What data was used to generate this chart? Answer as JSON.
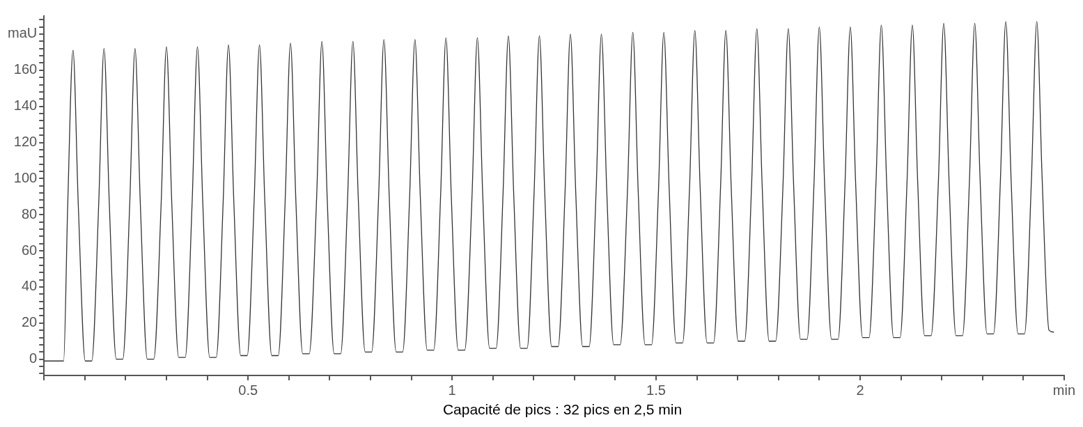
{
  "chart_data": {
    "type": "line",
    "annotations": [
      "Capacité de pics : 32 pics en 2,5 min"
    ],
    "xlim": [
      0,
      2.5
    ],
    "ylim": [
      -9,
      190
    ],
    "xticks": [
      {
        "value": 0,
        "label": null
      },
      {
        "value": 0.1,
        "label": null
      },
      {
        "value": 0.2,
        "label": null
      },
      {
        "value": 0.3,
        "label": null
      },
      {
        "value": 0.4,
        "label": null
      },
      0.5,
      {
        "value": 0.6,
        "label": null
      },
      {
        "value": 0.7,
        "label": null
      },
      {
        "value": 0.8,
        "label": null
      },
      {
        "value": 0.9,
        "label": null
      },
      1,
      {
        "value": 1.1,
        "label": null
      },
      {
        "value": 1.2,
        "label": null
      },
      {
        "value": 1.3,
        "label": null
      },
      {
        "value": 1.4,
        "label": null
      },
      1.5,
      {
        "value": 1.6,
        "label": null
      },
      {
        "value": 1.7,
        "label": null
      },
      {
        "value": 1.8,
        "label": null
      },
      {
        "value": 1.9,
        "label": null
      },
      2,
      {
        "value": 2.1,
        "label": null
      },
      {
        "value": 2.2,
        "label": null
      },
      {
        "value": 2.3,
        "label": null
      },
      {
        "value": 2.4,
        "label": null
      },
      {
        "value": 2.5,
        "label": "min"
      }
    ],
    "yticks": [
      {
        "value": -8,
        "label": null
      },
      {
        "value": -4,
        "label": null
      },
      0,
      {
        "value": 4,
        "label": null
      },
      {
        "value": 8,
        "label": null
      },
      {
        "value": 12,
        "label": null
      },
      {
        "value": 16,
        "label": null
      },
      20,
      {
        "value": 24,
        "label": null
      },
      {
        "value": 28,
        "label": null
      },
      {
        "value": 32,
        "label": null
      },
      {
        "value": 36,
        "label": null
      },
      40,
      {
        "value": 44,
        "label": null
      },
      {
        "value": 48,
        "label": null
      },
      {
        "value": 52,
        "label": null
      },
      {
        "value": 56,
        "label": null
      },
      60,
      {
        "value": 64,
        "label": null
      },
      {
        "value": 68,
        "label": null
      },
      {
        "value": 72,
        "label": null
      },
      {
        "value": 76,
        "label": null
      },
      80,
      {
        "value": 84,
        "label": null
      },
      {
        "value": 88,
        "label": null
      },
      {
        "value": 92,
        "label": null
      },
      {
        "value": 96,
        "label": null
      },
      100,
      {
        "value": 104,
        "label": null
      },
      {
        "value": 108,
        "label": null
      },
      {
        "value": 112,
        "label": null
      },
      {
        "value": 116,
        "label": null
      },
      120,
      {
        "value": 124,
        "label": null
      },
      {
        "value": 128,
        "label": null
      },
      {
        "value": 132,
        "label": null
      },
      {
        "value": 136,
        "label": null
      },
      140,
      {
        "value": 144,
        "label": null
      },
      {
        "value": 148,
        "label": null
      },
      {
        "value": 152,
        "label": null
      },
      {
        "value": 156,
        "label": null
      },
      160,
      {
        "value": 164,
        "label": null
      },
      {
        "value": 168,
        "label": null
      },
      {
        "value": 172,
        "label": null
      },
      {
        "value": 176,
        "label": null
      },
      {
        "value": 180,
        "label": "maU"
      },
      {
        "value": 184,
        "label": null
      },
      {
        "value": 188,
        "label": null
      }
    ],
    "grid": false,
    "legend": false,
    "marker": "none",
    "line_style": "solid",
    "series": [
      {
        "color": "#333333",
        "x": [
          0,
          0.048,
          0.058,
          0.071,
          0.084,
          0.101,
          0.117,
          0.134,
          0.147,
          0.16,
          0.177,
          0.193,
          0.21,
          0.223,
          0.236,
          0.253,
          0.269,
          0.287,
          0.3,
          0.313,
          0.33,
          0.346,
          0.363,
          0.376,
          0.389,
          0.406,
          0.422,
          0.439,
          0.452,
          0.465,
          0.482,
          0.498,
          0.515,
          0.528,
          0.541,
          0.558,
          0.574,
          0.591,
          0.604,
          0.617,
          0.634,
          0.65,
          0.668,
          0.681,
          0.694,
          0.711,
          0.727,
          0.744,
          0.757,
          0.77,
          0.787,
          0.803,
          0.82,
          0.833,
          0.846,
          0.863,
          0.879,
          0.896,
          0.909,
          0.922,
          0.939,
          0.955,
          0.972,
          0.985,
          0.998,
          1.015,
          1.031,
          1.049,
          1.062,
          1.075,
          1.092,
          1.108,
          1.125,
          1.138,
          1.151,
          1.168,
          1.184,
          1.201,
          1.214,
          1.227,
          1.244,
          1.26,
          1.277,
          1.29,
          1.303,
          1.32,
          1.336,
          1.353,
          1.366,
          1.379,
          1.396,
          1.412,
          1.43,
          1.443,
          1.456,
          1.473,
          1.489,
          1.506,
          1.519,
          1.532,
          1.549,
          1.565,
          1.582,
          1.595,
          1.608,
          1.625,
          1.641,
          1.658,
          1.671,
          1.684,
          1.701,
          1.717,
          1.734,
          1.747,
          1.76,
          1.777,
          1.793,
          1.811,
          1.824,
          1.837,
          1.854,
          1.87,
          1.887,
          1.9,
          1.913,
          1.93,
          1.946,
          1.963,
          1.976,
          1.989,
          2.006,
          2.022,
          2.039,
          2.052,
          2.065,
          2.082,
          2.098,
          2.115,
          2.128,
          2.141,
          2.158,
          2.174,
          2.192,
          2.205,
          2.218,
          2.235,
          2.251,
          2.268,
          2.281,
          2.294,
          2.311,
          2.327,
          2.344,
          2.357,
          2.37,
          2.387,
          2.403,
          2.42,
          2.433,
          2.446,
          2.463,
          2.475
        ],
        "values": [
          -1,
          -1,
          85,
          171,
          85,
          -1,
          -1,
          86,
          172,
          86,
          0,
          0,
          86,
          172,
          86,
          0,
          0,
          86,
          173,
          87,
          1,
          1,
          87,
          173,
          87,
          1,
          1,
          87,
          174,
          88,
          2,
          2,
          88,
          174,
          88,
          2,
          2,
          88,
          175,
          89,
          3,
          3,
          89,
          176,
          89,
          3,
          3,
          89,
          176,
          90,
          4,
          4,
          90,
          177,
          90,
          4,
          4,
          90,
          177,
          91,
          5,
          5,
          91,
          178,
          91,
          5,
          5,
          91,
          178,
          92,
          6,
          6,
          92,
          179,
          92,
          6,
          6,
          92,
          179,
          93,
          7,
          7,
          93,
          180,
          93,
          7,
          7,
          93,
          180,
          94,
          8,
          8,
          94,
          181,
          94,
          8,
          8,
          94,
          181,
          95,
          9,
          9,
          95,
          182,
          95,
          9,
          9,
          95,
          182,
          96,
          10,
          10,
          96,
          183,
          96,
          10,
          10,
          96,
          183,
          97,
          11,
          11,
          97,
          184,
          97,
          11,
          11,
          97,
          184,
          98,
          12,
          12,
          98,
          185,
          98,
          12,
          12,
          98,
          185,
          99,
          13,
          13,
          99,
          186,
          99,
          13,
          13,
          99,
          186,
          100,
          14,
          14,
          100,
          187,
          100,
          14,
          14,
          100,
          187,
          101,
          16,
          15
        ]
      }
    ]
  }
}
